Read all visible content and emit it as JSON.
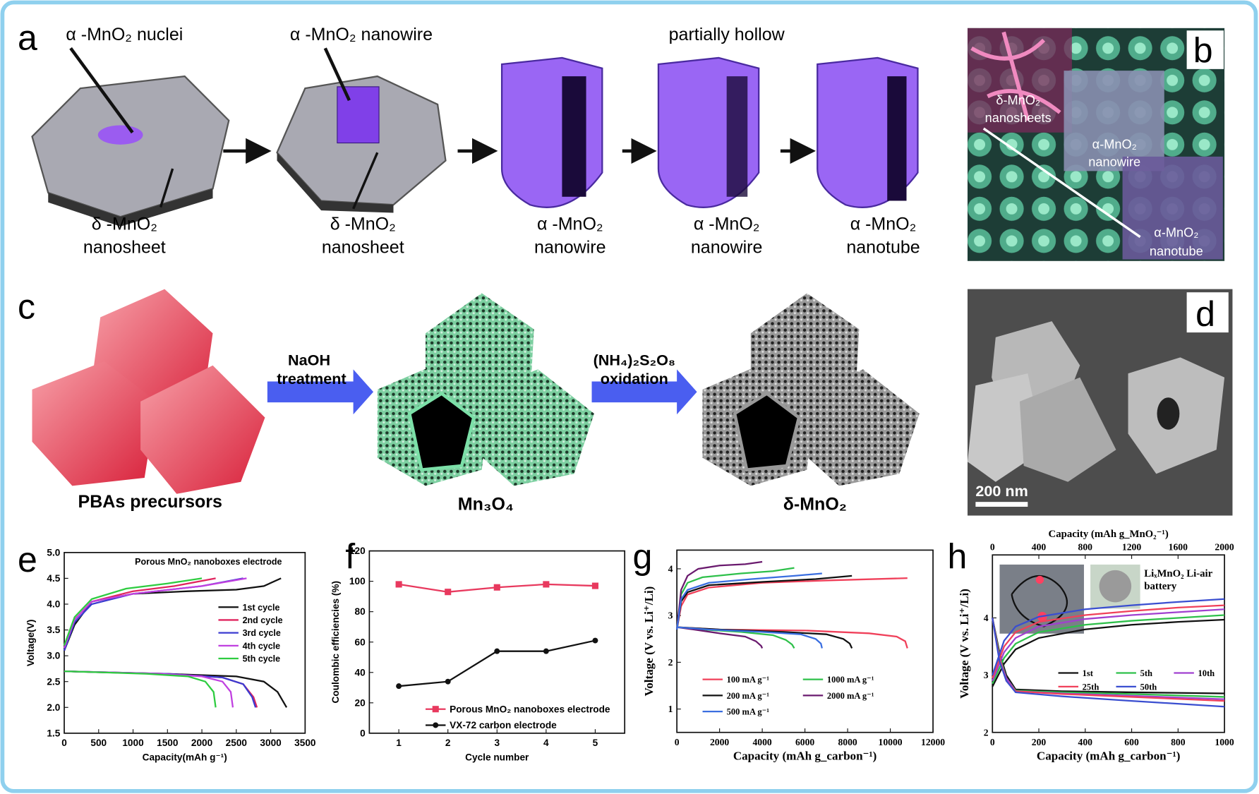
{
  "panel_labels": [
    "a",
    "b",
    "c",
    "d",
    "e",
    "f",
    "g",
    "h"
  ],
  "panel_a": {
    "top_labels": [
      "α -MnO₂ nuclei",
      "α -MnO₂ nanowire",
      "partially hollow"
    ],
    "bottom_labels": [
      [
        "δ -MnO₂",
        "nanosheet"
      ],
      [
        "δ -MnO₂",
        "nanosheet"
      ],
      [
        "α -MnO₂",
        "nanowire"
      ],
      [
        "α -MnO₂",
        "nanowire"
      ],
      [
        "α -MnO₂",
        "nanotube"
      ]
    ]
  },
  "panel_b": {
    "labels": [
      [
        "δ-MnO₂",
        "nanosheets"
      ],
      [
        "α-MnO₂",
        "nanowire"
      ],
      [
        "α-MnO₂",
        "nanotube"
      ]
    ]
  },
  "panel_c": {
    "arrows": [
      [
        "NaOH",
        "treatment"
      ],
      [
        "(NH₄)₂S₂O₈",
        "oxidation"
      ]
    ],
    "labels": [
      "PBAs precursors",
      "Mn₃O₄",
      "δ-MnO₂"
    ]
  },
  "panel_d": {
    "scale_bar": "200 nm"
  },
  "chart_data": [
    {
      "type": "line",
      "title": "Porous MnO₂ nanoboxes electrode",
      "xlabel": "Capacity(mAh g⁻¹)",
      "ylabel": "Voltage(V)",
      "xlim": [
        0,
        3500
      ],
      "xticks": [
        0,
        500,
        1000,
        1500,
        2000,
        2500,
        3000,
        3500
      ],
      "ylim": [
        1.5,
        5.0
      ],
      "yticks": [
        1.5,
        {
          "value": 2,
          "label": "2.0"
        },
        2.5,
        {
          "value": 3,
          "label": "3.0"
        },
        3.5,
        {
          "value": 4,
          "label": "4.0"
        },
        4.5,
        {
          "value": 5,
          "label": "5.0"
        }
      ],
      "legend": "right",
      "series": [
        {
          "name": "1st cycle",
          "color": "#111111",
          "x": [
            0,
            150,
            400,
            1000,
            1800,
            2500,
            2900,
            3150,
            null,
            0,
            500,
            1500,
            2500,
            2900,
            3100,
            3230
          ],
          "values": [
            3.1,
            3.6,
            4.05,
            4.2,
            4.25,
            4.28,
            4.35,
            4.5,
            null,
            2.7,
            2.68,
            2.65,
            2.6,
            2.5,
            2.3,
            2.0
          ]
        },
        {
          "name": "2nd cycle",
          "color": "#e0245e",
          "x": [
            0,
            150,
            400,
            1000,
            1600,
            2200,
            null,
            0,
            600,
            1500,
            2300,
            2600,
            2750,
            2800
          ],
          "values": [
            3.2,
            3.7,
            4.05,
            4.25,
            4.35,
            4.5,
            null,
            2.7,
            2.68,
            2.65,
            2.58,
            2.45,
            2.2,
            2.0
          ]
        },
        {
          "name": "3rd cycle",
          "color": "#3b3bd0",
          "x": [
            0,
            150,
            400,
            1000,
            2000,
            2600,
            null,
            0,
            600,
            1500,
            2300,
            2600,
            2730,
            2780
          ],
          "values": [
            3.1,
            3.65,
            4.0,
            4.2,
            4.35,
            4.5,
            null,
            2.7,
            2.68,
            2.65,
            2.58,
            2.45,
            2.2,
            2.0
          ]
        },
        {
          "name": "4th cycle",
          "color": "#c040e0",
          "x": [
            0,
            150,
            400,
            1000,
            2000,
            2650,
            null,
            0,
            600,
            1400,
            2000,
            2300,
            2420,
            2450
          ],
          "values": [
            3.15,
            3.7,
            4.05,
            4.2,
            4.35,
            4.5,
            null,
            2.7,
            2.68,
            2.65,
            2.6,
            2.5,
            2.3,
            2.0
          ]
        },
        {
          "name": "5th cycle",
          "color": "#2ecc40",
          "x": [
            0,
            150,
            400,
            900,
            1500,
            2000,
            null,
            0,
            500,
            1200,
            1800,
            2050,
            2170,
            2200
          ],
          "values": [
            3.2,
            3.75,
            4.1,
            4.3,
            4.4,
            4.5,
            null,
            2.7,
            2.68,
            2.65,
            2.6,
            2.5,
            2.3,
            2.0
          ]
        }
      ]
    },
    {
      "type": "line",
      "xlabel": "Cycle number",
      "ylabel": "Coulombic efficiencies (%)",
      "x": [
        1,
        2,
        3,
        4,
        5
      ],
      "xlim": [
        0.4,
        5.6
      ],
      "xticks": [
        1,
        2,
        3,
        4,
        5
      ],
      "ylim": [
        0,
        120
      ],
      "yticks": [
        0,
        20,
        40,
        60,
        80,
        100,
        120
      ],
      "legend": "lower center",
      "series": [
        {
          "name": "Porous MnO₂ nanoboxes electrode",
          "color": "#e8395e",
          "marker": "square",
          "values": [
            98,
            93,
            96,
            98,
            97
          ]
        },
        {
          "name": "VX-72 carbon electrode",
          "color": "#111111",
          "marker": "circle",
          "values": [
            31,
            34,
            54,
            54,
            61
          ]
        }
      ]
    },
    {
      "type": "line",
      "xlabel": "Capacity (mAh g_carbon⁻¹)",
      "ylabel": "Voltage (V vs. Li⁺/Li)",
      "xlim": [
        0,
        12000
      ],
      "xticks": [
        0,
        2000,
        4000,
        6000,
        8000,
        10000,
        12000
      ],
      "ylim": [
        0.5,
        4.4
      ],
      "yticks": [
        1,
        2,
        3,
        4
      ],
      "legend": "lower left",
      "series": [
        {
          "name": "100 mA g⁻¹",
          "color": "#f0405a",
          "x": [
            0,
            200,
            500,
            1500,
            4000,
            7000,
            10800,
            null,
            0,
            2000,
            6000,
            9000,
            10300,
            10700,
            10800
          ],
          "values": [
            2.7,
            3.2,
            3.45,
            3.6,
            3.7,
            3.75,
            3.8,
            null,
            2.75,
            2.7,
            2.68,
            2.62,
            2.55,
            2.45,
            2.3
          ]
        },
        {
          "name": "1000 mA g⁻¹",
          "color": "#2ec04a",
          "x": [
            0,
            200,
            500,
            1200,
            3000,
            4500,
            5500,
            null,
            0,
            1200,
            3000,
            4500,
            5100,
            5400,
            5500
          ],
          "values": [
            2.7,
            3.45,
            3.7,
            3.82,
            3.9,
            3.95,
            4.02,
            null,
            2.75,
            2.7,
            2.65,
            2.58,
            2.48,
            2.38,
            2.3
          ]
        },
        {
          "name": "200 mA g⁻¹",
          "color": "#111111",
          "x": [
            0,
            200,
            500,
            1500,
            4000,
            6500,
            8200,
            null,
            0,
            2000,
            5000,
            7000,
            7800,
            8100,
            8200
          ],
          "values": [
            2.7,
            3.3,
            3.5,
            3.65,
            3.72,
            3.78,
            3.85,
            null,
            2.75,
            2.7,
            2.65,
            2.6,
            2.5,
            2.4,
            2.3
          ]
        },
        {
          "name": "2000 mA g⁻¹",
          "color": "#6a1a6e",
          "x": [
            0,
            200,
            500,
            1000,
            2000,
            3200,
            4000,
            null,
            0,
            800,
            2000,
            3200,
            3700,
            3950,
            4000
          ],
          "values": [
            2.7,
            3.55,
            3.85,
            4.0,
            4.07,
            4.1,
            4.15,
            null,
            2.75,
            2.7,
            2.62,
            2.55,
            2.45,
            2.35,
            2.3
          ]
        },
        {
          "name": "500 mA g⁻¹",
          "color": "#3a6ee0",
          "x": [
            0,
            200,
            500,
            1500,
            3500,
            5500,
            6800,
            null,
            0,
            1500,
            4000,
            5800,
            6500,
            6750,
            6800
          ],
          "values": [
            2.7,
            3.35,
            3.55,
            3.7,
            3.78,
            3.85,
            3.9,
            null,
            2.75,
            2.7,
            2.65,
            2.6,
            2.5,
            2.4,
            2.3
          ]
        }
      ]
    },
    {
      "type": "line",
      "xlabel": "Capacity (mAh g_carbon⁻¹)",
      "ylabel": "Voltage (V vs. Li⁺/Li)",
      "x2label": "Capacity (mAh g_MnO₂⁻¹)",
      "inset_text": [
        "LiₓMnO₂ Li-air",
        "battery"
      ],
      "xlim": [
        0,
        1000
      ],
      "xticks": [
        0,
        200,
        400,
        600,
        800,
        1000
      ],
      "x2lim": [
        0,
        2000
      ],
      "x2ticks": [
        0,
        400,
        800,
        1200,
        1600,
        2000
      ],
      "ylim": [
        2,
        5.1
      ],
      "yticks": [
        2,
        3,
        4
      ],
      "legend": "center",
      "series": [
        {
          "name": "1st",
          "color": "#111111",
          "x": [
            0,
            50,
            100,
            200,
            400,
            600,
            800,
            1000,
            null,
            0,
            30,
            60,
            100,
            300,
            600,
            1000
          ],
          "values": [
            2.8,
            3.2,
            3.45,
            3.65,
            3.8,
            3.88,
            3.93,
            3.97,
            null,
            4.0,
            3.4,
            3.0,
            2.75,
            2.72,
            2.7,
            2.68
          ]
        },
        {
          "name": "5th",
          "color": "#2ec04a",
          "x": [
            0,
            50,
            100,
            200,
            400,
            600,
            800,
            1000,
            null,
            0,
            30,
            60,
            100,
            300,
            600,
            1000
          ],
          "values": [
            2.85,
            3.3,
            3.55,
            3.75,
            3.88,
            3.95,
            4.0,
            4.05,
            null,
            4.0,
            3.35,
            2.95,
            2.73,
            2.7,
            2.67,
            2.62
          ]
        },
        {
          "name": "10th",
          "color": "#a040d0",
          "x": [
            0,
            50,
            100,
            200,
            400,
            600,
            800,
            1000,
            null,
            0,
            30,
            60,
            100,
            300,
            600,
            1000
          ],
          "values": [
            2.9,
            3.4,
            3.65,
            3.85,
            3.98,
            4.05,
            4.1,
            4.15,
            null,
            4.0,
            3.3,
            2.95,
            2.72,
            2.68,
            2.64,
            2.58
          ]
        },
        {
          "name": "25th",
          "color": "#f0405a",
          "x": [
            0,
            50,
            100,
            200,
            400,
            600,
            800,
            1000,
            null,
            0,
            30,
            60,
            100,
            300,
            600,
            1000
          ],
          "values": [
            2.95,
            3.5,
            3.75,
            3.93,
            4.05,
            4.12,
            4.18,
            4.22,
            null,
            4.0,
            3.3,
            2.9,
            2.72,
            2.67,
            2.62,
            2.55
          ]
        },
        {
          "name": "50th",
          "color": "#3a4ed0",
          "x": [
            0,
            50,
            100,
            200,
            400,
            600,
            800,
            1000,
            null,
            0,
            30,
            60,
            100,
            300,
            600,
            1000
          ],
          "values": [
            3.0,
            3.6,
            3.85,
            4.02,
            4.15,
            4.22,
            4.28,
            4.33,
            null,
            4.0,
            3.25,
            2.9,
            2.7,
            2.63,
            2.55,
            2.45
          ]
        }
      ]
    }
  ]
}
